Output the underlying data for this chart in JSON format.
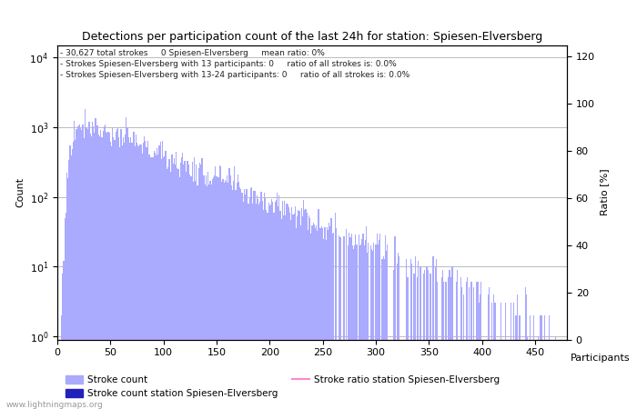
{
  "title": "Detections per participation count of the last 24h for station: Spiesen-Elversberg",
  "xlabel": "Participants",
  "ylabel_left": "Count",
  "ylabel_right": "Ratio [%]",
  "annotation_lines": [
    "30,627 total strokes     0 Spiesen-Elversberg     mean ratio: 0%",
    "Strokes Spiesen-Elversberg with 13 participants: 0     ratio of all strokes is: 0.0%",
    "Strokes Spiesen-Elversberg with 13-24 participants: 0     ratio of all strokes is: 0.0%"
  ],
  "bar_color_light": "#aaaaff",
  "bar_color_dark": "#2222bb",
  "ratio_line_color": "#ff88cc",
  "background_color": "#ffffff",
  "grid_color": "#bbbbbb",
  "watermark": "www.lightningmaps.org",
  "ylim_right": [
    0,
    125
  ],
  "xlim": [
    0,
    480
  ],
  "ymin": 0.9,
  "ymax": 15000,
  "yticks": [
    1,
    10,
    100,
    1000,
    10000
  ],
  "ytick_labels": [
    "10^0",
    "10^1",
    "10^2",
    "10^3",
    "10^4"
  ],
  "xticks": [
    0,
    50,
    100,
    150,
    200,
    250,
    300,
    350,
    400,
    450
  ],
  "right_yticks": [
    0,
    20,
    40,
    60,
    80,
    100,
    120
  ],
  "legend_items": [
    "Stroke count",
    "Stroke count station Spiesen-Elversberg",
    "Stroke ratio station Spiesen-Elversberg"
  ]
}
